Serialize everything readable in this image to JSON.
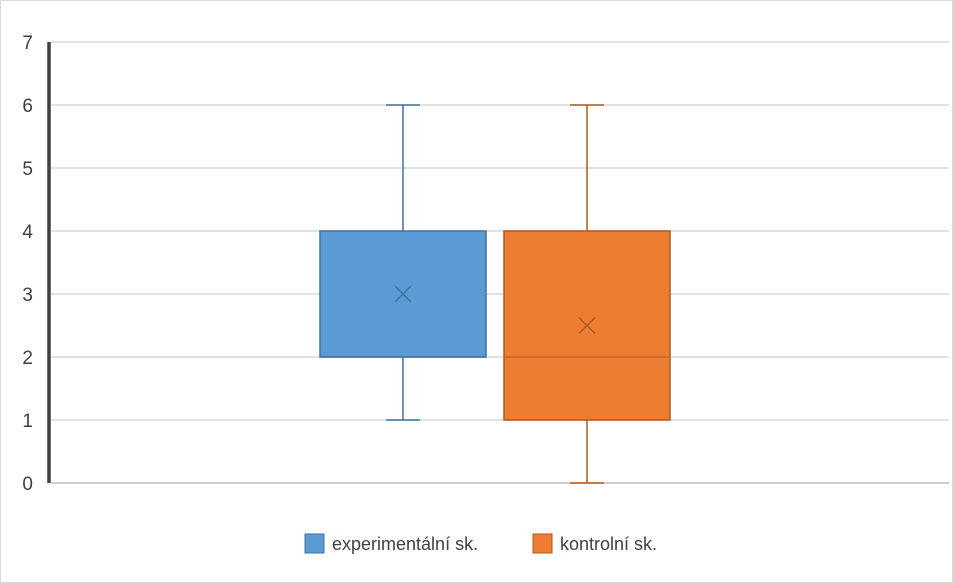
{
  "chart_data": {
    "type": "boxplot",
    "title": "",
    "xlabel": "",
    "ylabel": "",
    "ylim": [
      0,
      7
    ],
    "yticks": [
      0,
      1,
      2,
      3,
      4,
      5,
      6,
      7
    ],
    "grid": true,
    "legend_position": "bottom",
    "series": [
      {
        "name": "experimentální sk.",
        "color": "#5b9bd5",
        "whisker_color": "#41719c",
        "min": 1,
        "q1": 2,
        "median": 2,
        "q3": 4,
        "max": 6,
        "mean": 3
      },
      {
        "name": "kontrolní sk.",
        "color": "#ed7d31",
        "whisker_color": "#ae5a21",
        "min": 0,
        "q1": 1,
        "median": 2,
        "q3": 4,
        "max": 6,
        "mean": 2.5
      }
    ]
  }
}
